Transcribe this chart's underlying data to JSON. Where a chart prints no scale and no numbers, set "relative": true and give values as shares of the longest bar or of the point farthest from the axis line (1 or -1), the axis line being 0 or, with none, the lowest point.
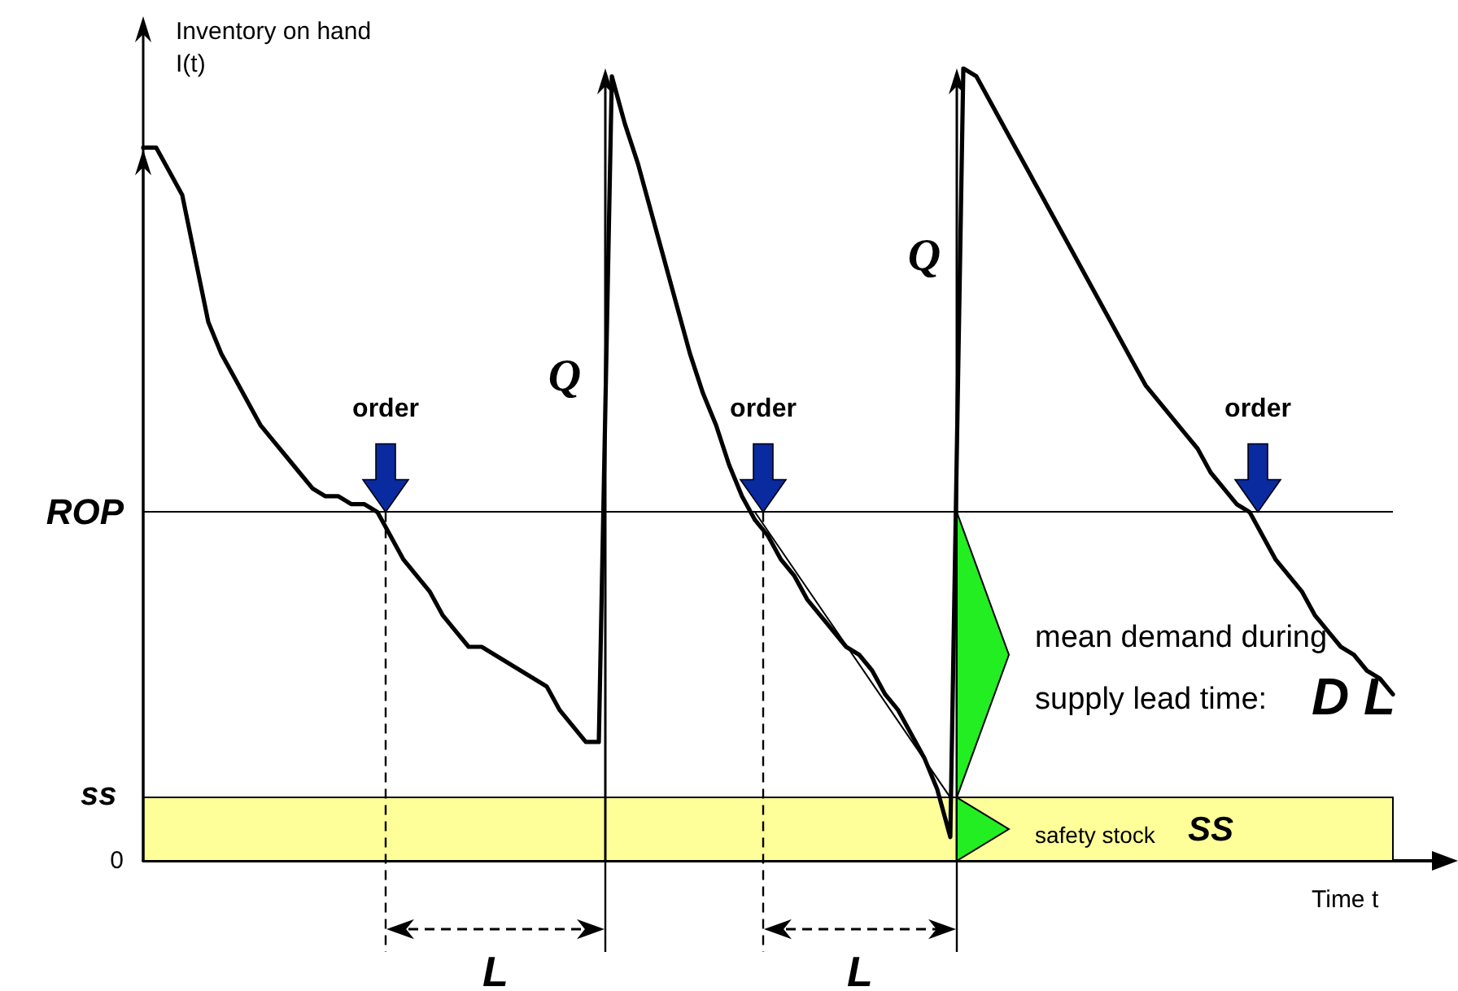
{
  "chart_data": {
    "type": "line",
    "relative": true,
    "xlabel": "Time t",
    "ylabel": "Inventory on hand I(t)",
    "categories": [
      null,
      null,
      null,
      null,
      null,
      null,
      null,
      null,
      null,
      null,
      null,
      null,
      null,
      null,
      null,
      null,
      null,
      null,
      null,
      null,
      null,
      null,
      null,
      null,
      null,
      null,
      null,
      null,
      null,
      null,
      null,
      null,
      null,
      null,
      null,
      null,
      null,
      null,
      null,
      null,
      null,
      null,
      null,
      null,
      null,
      null,
      null,
      null,
      null,
      null,
      null,
      null,
      null,
      null,
      null,
      null,
      null,
      null,
      null,
      null,
      null,
      null,
      null,
      null,
      null,
      null,
      null,
      null,
      null,
      null,
      null,
      null,
      null,
      null,
      null,
      null,
      null,
      null,
      null,
      null,
      null,
      null,
      null,
      null,
      null,
      null,
      null,
      null,
      null,
      null,
      null,
      null,
      null,
      null,
      null,
      null,
      null
    ],
    "series": [
      {
        "color": "#000000",
        "values": [
          0.9,
          0.9,
          0.87,
          0.84,
          0.76,
          0.68,
          0.64,
          0.61,
          0.58,
          0.55,
          0.53,
          0.51,
          0.49,
          0.47,
          0.46,
          0.46,
          0.45,
          0.45,
          0.44,
          0.41,
          0.38,
          0.36,
          0.34,
          0.31,
          0.29,
          0.27,
          0.27,
          0.26,
          0.25,
          0.24,
          0.23,
          0.22,
          0.19,
          0.17,
          0.15,
          0.15,
          0.99,
          0.93,
          0.88,
          0.82,
          0.76,
          0.7,
          0.64,
          0.59,
          0.55,
          0.5,
          0.46,
          0.43,
          0.41,
          0.38,
          0.36,
          0.33,
          0.31,
          0.29,
          0.27,
          0.26,
          0.24,
          0.21,
          0.19,
          0.16,
          0.13,
          0.09,
          0.03,
          1.0,
          0.99,
          0.96,
          0.93,
          0.9,
          0.87,
          0.84,
          0.81,
          0.78,
          0.75,
          0.72,
          0.69,
          0.66,
          0.63,
          0.6,
          0.58,
          0.56,
          0.54,
          0.52,
          0.49,
          0.47,
          0.45,
          0.44,
          0.41,
          0.38,
          0.36,
          0.34,
          0.31,
          0.29,
          0.27,
          0.26,
          0.24,
          0.23,
          0.21
        ]
      },
      {
        "color": "#000000",
        "values": [
          null,
          null,
          null,
          null,
          null,
          null,
          null,
          null,
          null,
          null,
          null,
          null,
          null,
          null,
          null,
          null,
          null,
          null,
          null,
          null,
          null,
          null,
          null,
          null,
          null,
          null,
          null,
          null,
          null,
          null,
          null,
          null,
          null,
          null,
          null,
          null,
          null,
          null,
          null,
          null,
          null,
          null,
          null,
          null,
          null,
          null,
          null,
          0.44,
          null,
          null,
          null,
          null,
          null,
          null,
          null,
          null,
          null,
          null,
          null,
          null,
          null,
          null,
          0.08,
          null,
          null,
          null,
          null,
          null,
          null,
          null,
          null,
          null,
          null,
          null,
          null,
          null,
          null,
          null,
          null,
          null,
          null,
          null,
          null,
          null,
          null,
          null,
          null,
          null,
          null,
          null,
          null,
          null,
          null,
          null,
          null,
          null,
          null
        ]
      }
    ],
    "ref_lines": [
      {
        "axis": "y",
        "value": 0.44,
        "label": "ROP",
        "color": "#000000"
      }
    ],
    "bands": [
      {
        "axis": "y",
        "from": 0,
        "to": 0.08,
        "label": "ss",
        "color": "#ffff99"
      }
    ],
    "annotations": [
      "Q",
      "Q",
      "order",
      "order",
      "order",
      "L",
      "L",
      "mean demand during",
      "supply lead time:",
      "D L",
      "safety stock",
      "SS",
      "0"
    ],
    "marker": "none",
    "line_style": "solid",
    "tick_labels": false,
    "grid": false
  }
}
